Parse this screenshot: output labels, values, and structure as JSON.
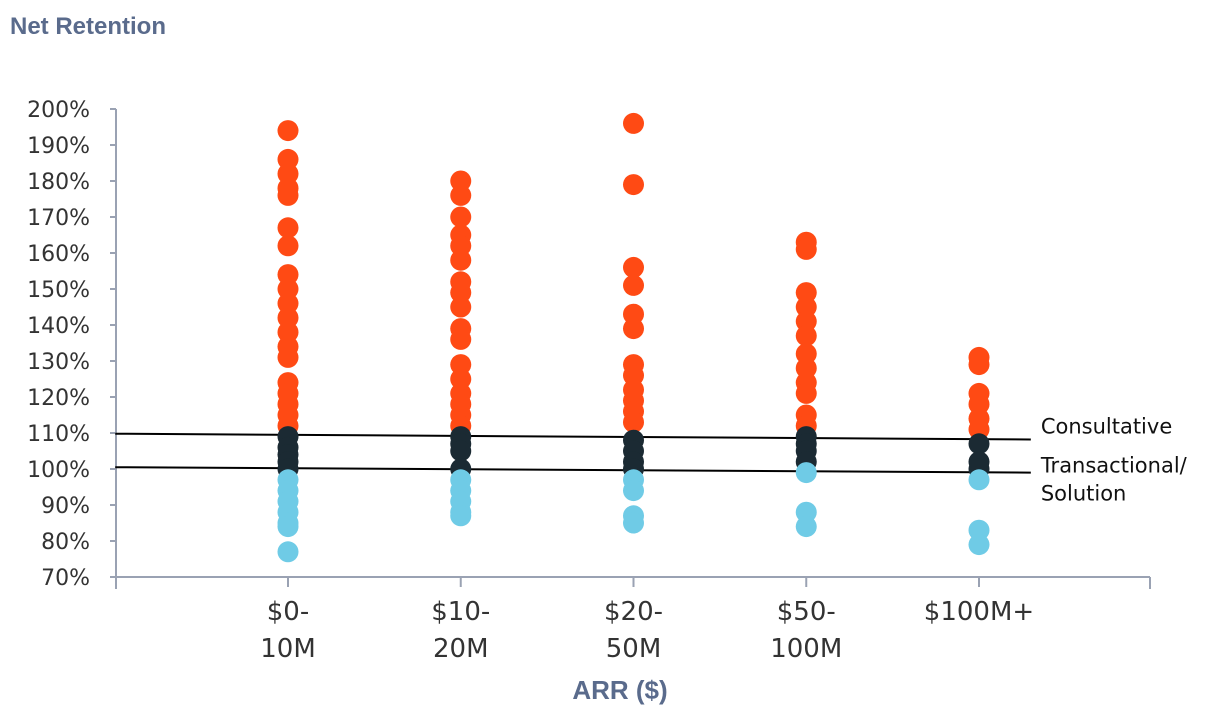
{
  "chart_data": {
    "type": "scatter",
    "title": "Net Retention",
    "xlabel": "ARR ($)",
    "ylabel": "",
    "ylim": [
      70,
      200
    ],
    "ytick_labels": [
      "70%",
      "80%",
      "90%",
      "100%",
      "110%",
      "120%",
      "130%",
      "140%",
      "150%",
      "160%",
      "170%",
      "180%",
      "190%",
      "200%"
    ],
    "categories": [
      {
        "lines": [
          "$0-",
          "10M"
        ]
      },
      {
        "lines": [
          "$10-",
          "20M"
        ]
      },
      {
        "lines": [
          "$20-",
          "50M"
        ]
      },
      {
        "lines": [
          "$50-",
          "100M"
        ]
      },
      {
        "lines": [
          "$100M+"
        ]
      }
    ],
    "colors": {
      "above": "#FF4A14",
      "middle": "#1B2A33",
      "below": "#6FCBE6",
      "axis": "#9AA2B3",
      "title": "#5A6B8C"
    },
    "series": [
      {
        "color_key": "above",
        "points": [
          [
            0,
            194
          ],
          [
            0,
            186
          ],
          [
            0,
            182
          ],
          [
            0,
            178
          ],
          [
            0,
            176
          ],
          [
            0,
            167
          ],
          [
            0,
            162
          ],
          [
            0,
            154
          ],
          [
            0,
            150
          ],
          [
            0,
            146
          ],
          [
            0,
            142
          ],
          [
            0,
            138
          ],
          [
            0,
            134
          ],
          [
            0,
            131
          ],
          [
            0,
            124
          ],
          [
            0,
            121
          ],
          [
            0,
            118
          ],
          [
            0,
            115
          ],
          [
            0,
            112
          ],
          [
            1,
            180
          ],
          [
            1,
            176
          ],
          [
            1,
            170
          ],
          [
            1,
            165
          ],
          [
            1,
            162
          ],
          [
            1,
            158
          ],
          [
            1,
            152
          ],
          [
            1,
            149
          ],
          [
            1,
            145
          ],
          [
            1,
            139
          ],
          [
            1,
            136
          ],
          [
            1,
            129
          ],
          [
            1,
            125
          ],
          [
            1,
            121
          ],
          [
            1,
            118
          ],
          [
            1,
            115
          ],
          [
            1,
            112
          ],
          [
            2,
            196
          ],
          [
            2,
            179
          ],
          [
            2,
            156
          ],
          [
            2,
            151
          ],
          [
            2,
            143
          ],
          [
            2,
            139
          ],
          [
            2,
            129
          ],
          [
            2,
            126
          ],
          [
            2,
            122
          ],
          [
            2,
            119
          ],
          [
            2,
            116
          ],
          [
            2,
            113
          ],
          [
            3,
            163
          ],
          [
            3,
            161
          ],
          [
            3,
            149
          ],
          [
            3,
            145
          ],
          [
            3,
            141
          ],
          [
            3,
            137
          ],
          [
            3,
            132
          ],
          [
            3,
            128
          ],
          [
            3,
            124
          ],
          [
            3,
            121
          ],
          [
            3,
            115
          ],
          [
            3,
            112
          ],
          [
            4,
            131
          ],
          [
            4,
            129
          ],
          [
            4,
            121
          ],
          [
            4,
            118
          ],
          [
            4,
            114
          ],
          [
            4,
            111
          ]
        ]
      },
      {
        "color_key": "middle",
        "points": [
          [
            0,
            109
          ],
          [
            0,
            106
          ],
          [
            0,
            104
          ],
          [
            0,
            102
          ],
          [
            0,
            100
          ],
          [
            1,
            109
          ],
          [
            1,
            107
          ],
          [
            1,
            105
          ],
          [
            1,
            100
          ],
          [
            2,
            108
          ],
          [
            2,
            105
          ],
          [
            2,
            102
          ],
          [
            2,
            100
          ],
          [
            3,
            109
          ],
          [
            3,
            107
          ],
          [
            3,
            105
          ],
          [
            3,
            102
          ],
          [
            4,
            107
          ],
          [
            4,
            102
          ],
          [
            4,
            100
          ]
        ]
      },
      {
        "color_key": "below",
        "points": [
          [
            0,
            97
          ],
          [
            0,
            94
          ],
          [
            0,
            91
          ],
          [
            0,
            88
          ],
          [
            0,
            85
          ],
          [
            0,
            84
          ],
          [
            0,
            77
          ],
          [
            1,
            97
          ],
          [
            1,
            94
          ],
          [
            1,
            91
          ],
          [
            1,
            88
          ],
          [
            1,
            87
          ],
          [
            2,
            97
          ],
          [
            2,
            94
          ],
          [
            2,
            87
          ],
          [
            2,
            85
          ],
          [
            3,
            99
          ],
          [
            3,
            88
          ],
          [
            3,
            84
          ],
          [
            4,
            97
          ],
          [
            4,
            83
          ],
          [
            4,
            79
          ]
        ]
      }
    ],
    "threshold_lines": [
      {
        "label": [
          "Consultative"
        ],
        "x_start": -1.0,
        "y_start": 109.8,
        "x_end": 4.3,
        "y_end": 108.2
      },
      {
        "label": [
          "Transactional/",
          "Solution"
        ],
        "x_start": -1.0,
        "y_start": 100.5,
        "x_end": 4.3,
        "y_end": 99.0
      }
    ]
  }
}
